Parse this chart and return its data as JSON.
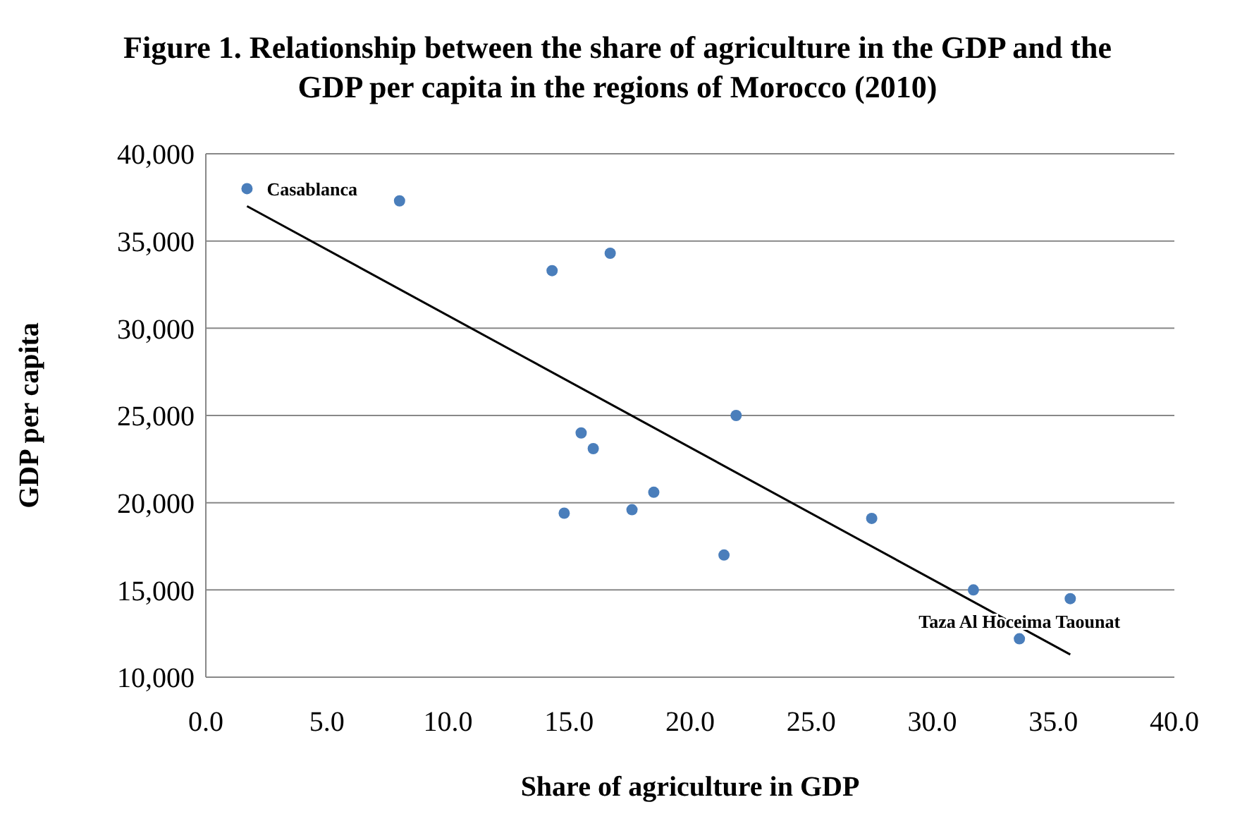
{
  "chart_data": {
    "type": "scatter",
    "title": "Figure 1. Relationship between the share of agriculture in the GDP and the GDP per capita in the regions of Morocco (2010)",
    "xlabel": "Share  of agriculture in GDP",
    "ylabel": "GDP per capita",
    "xlim": [
      0,
      40
    ],
    "xticks": [
      {
        "value": 0,
        "label": "0.0"
      },
      {
        "value": 5,
        "label": "5.0"
      },
      {
        "value": 10,
        "label": "10.0"
      },
      {
        "value": 15,
        "label": "15.0"
      },
      {
        "value": 20,
        "label": "20.0"
      },
      {
        "value": 25,
        "label": "25.0"
      },
      {
        "value": 30,
        "label": "30.0"
      },
      {
        "value": 35,
        "label": "35.0"
      },
      {
        "value": 40,
        "label": "40.0"
      }
    ],
    "ylim": [
      10000,
      40000
    ],
    "yticks": [
      {
        "value": 10000,
        "label": "10,000"
      },
      {
        "value": 15000,
        "label": "15,000"
      },
      {
        "value": 20000,
        "label": "20,000"
      },
      {
        "value": 25000,
        "label": "25,000"
      },
      {
        "value": 30000,
        "label": "30,000"
      },
      {
        "value": 35000,
        "label": "35,000"
      },
      {
        "value": 40000,
        "label": "40,000"
      }
    ],
    "grid": "y",
    "legend": false,
    "series": [
      {
        "color": "#4a7ebb",
        "marker": "circle",
        "x": [
          1.7,
          8.0,
          14.3,
          16.7,
          15.5,
          16.0,
          14.8,
          17.6,
          18.5,
          21.4,
          21.9,
          27.5,
          31.7,
          35.7,
          33.6
        ],
        "values": [
          38000,
          37300,
          33300,
          34300,
          24000,
          23100,
          19400,
          19600,
          20600,
          17000,
          25000,
          19100,
          15000,
          14500,
          12200
        ]
      },
      {
        "type": "line",
        "color": "#000000",
        "marker": "none",
        "x": [
          1.7,
          35.7
        ],
        "values": [
          37000,
          11300
        ]
      }
    ],
    "annotations": [
      {
        "text": "Casablanca",
        "x": 1.7,
        "y": 38000
      },
      {
        "text": "Taza Al Hoceima Taounat",
        "x": 33.6,
        "y": 12200
      }
    ]
  }
}
